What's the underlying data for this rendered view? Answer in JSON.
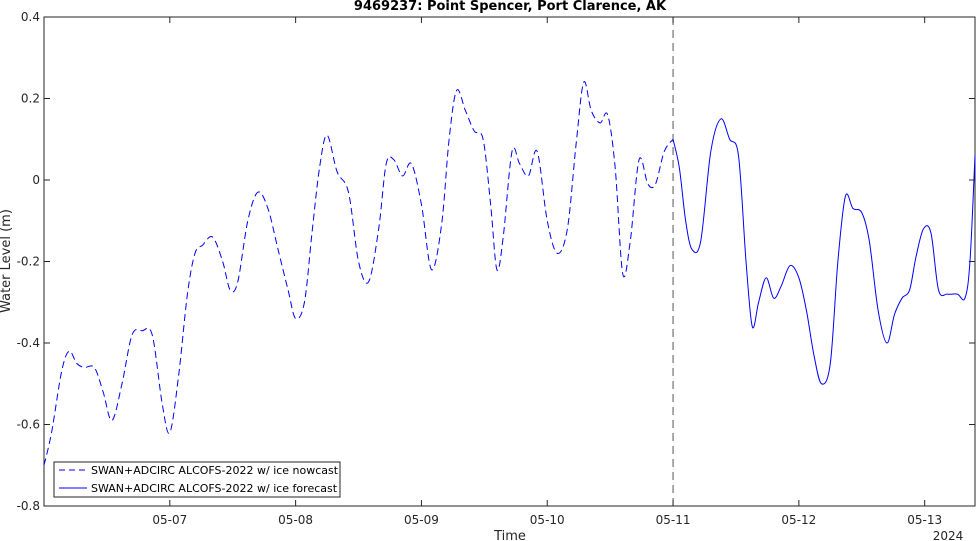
{
  "chart_data": {
    "type": "line",
    "title": "9469237: Point Spencer, Port Clarence, AK",
    "xlabel": "Time",
    "ylabel": "Water Level (m)",
    "x_tick_labels": [
      "05-07",
      "05-08",
      "05-09",
      "05-10",
      "05-11",
      "05-12",
      "05-13"
    ],
    "x_tick_values": [
      7,
      8,
      9,
      10,
      11,
      12,
      13
    ],
    "x_secondary_label": "2024",
    "xlim": [
      6.0,
      13.4
    ],
    "ylim": [
      -0.8,
      0.4
    ],
    "y_ticks": [
      -0.8,
      -0.6,
      -0.4,
      -0.2,
      0,
      0.2,
      0.4
    ],
    "y_tick_labels": [
      "-0.8",
      "-0.6",
      "-0.4",
      "-0.2",
      "0",
      "0.2",
      "0.4"
    ],
    "grid": false,
    "legend_position": "bottom-left",
    "vertical_marker_x": 11.0,
    "line_color": "#0000ff",
    "series": [
      {
        "name": "SWAN+ADCIRC ALCOFS-2022 w/ ice nowcast",
        "style": "dashed",
        "x": [
          6.0,
          6.06,
          6.14,
          6.2,
          6.26,
          6.32,
          6.4,
          6.47,
          6.54,
          6.62,
          6.7,
          6.78,
          6.86,
          6.94,
          7.0,
          7.07,
          7.14,
          7.2,
          7.26,
          7.34,
          7.42,
          7.48,
          7.54,
          7.62,
          7.7,
          7.78,
          7.86,
          7.94,
          8.0,
          8.07,
          8.13,
          8.19,
          8.25,
          8.33,
          8.42,
          8.5,
          8.58,
          8.66,
          8.72,
          8.78,
          8.85,
          8.92,
          9.0,
          9.08,
          9.16,
          9.22,
          9.28,
          9.35,
          9.42,
          9.49,
          9.55,
          9.6,
          9.65,
          9.72,
          9.78,
          9.85,
          9.92,
          10.0,
          10.08,
          10.16,
          10.23,
          10.29,
          10.35,
          10.42,
          10.48,
          10.54,
          10.6,
          10.66,
          10.73,
          10.8,
          10.86,
          10.93,
          11.0
        ],
        "y": [
          -0.7,
          -0.62,
          -0.47,
          -0.42,
          -0.45,
          -0.46,
          -0.46,
          -0.52,
          -0.59,
          -0.5,
          -0.38,
          -0.37,
          -0.38,
          -0.55,
          -0.62,
          -0.48,
          -0.28,
          -0.18,
          -0.16,
          -0.14,
          -0.2,
          -0.27,
          -0.25,
          -0.1,
          -0.03,
          -0.07,
          -0.17,
          -0.27,
          -0.34,
          -0.3,
          -0.13,
          0.03,
          0.11,
          0.02,
          -0.03,
          -0.2,
          -0.25,
          -0.12,
          0.04,
          0.05,
          0.01,
          0.04,
          -0.06,
          -0.22,
          -0.11,
          0.1,
          0.22,
          0.17,
          0.12,
          0.1,
          -0.06,
          -0.22,
          -0.14,
          0.07,
          0.04,
          0.01,
          0.07,
          -0.1,
          -0.18,
          -0.12,
          0.09,
          0.24,
          0.17,
          0.14,
          0.16,
          0.03,
          -0.23,
          -0.15,
          0.05,
          -0.01,
          -0.01,
          0.07,
          0.1
        ]
      },
      {
        "name": "SWAN+ADCIRC ALCOFS-2022 w/ ice forecast",
        "style": "solid",
        "x": [
          11.0,
          11.05,
          11.1,
          11.15,
          11.22,
          11.3,
          11.38,
          11.45,
          11.52,
          11.58,
          11.63,
          11.68,
          11.74,
          11.8,
          11.86,
          11.93,
          12.0,
          12.06,
          12.12,
          12.18,
          12.25,
          12.31,
          12.37,
          12.43,
          12.5,
          12.56,
          12.63,
          12.7,
          12.76,
          12.82,
          12.88,
          12.93,
          12.99,
          13.05,
          13.11,
          13.18,
          13.26,
          13.32,
          13.36,
          13.4
        ],
        "y": [
          0.1,
          0.03,
          -0.1,
          -0.17,
          -0.15,
          0.07,
          0.15,
          0.1,
          0.06,
          -0.2,
          -0.36,
          -0.3,
          -0.24,
          -0.29,
          -0.26,
          -0.21,
          -0.24,
          -0.32,
          -0.43,
          -0.5,
          -0.45,
          -0.2,
          -0.04,
          -0.07,
          -0.08,
          -0.15,
          -0.32,
          -0.4,
          -0.33,
          -0.29,
          -0.27,
          -0.19,
          -0.12,
          -0.13,
          -0.27,
          -0.28,
          -0.28,
          -0.29,
          -0.2,
          0.06
        ]
      }
    ]
  }
}
